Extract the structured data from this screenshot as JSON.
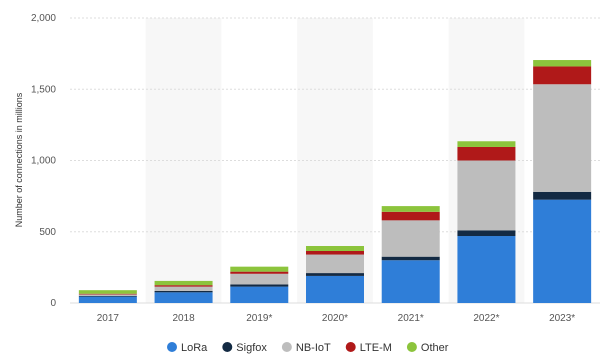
{
  "chart_data": {
    "type": "bar",
    "stacked": true,
    "categories": [
      "2017",
      "2018",
      "2019*",
      "2020*",
      "2021*",
      "2022*",
      "2023*"
    ],
    "series": [
      {
        "name": "LoRa",
        "color": "#2f7ed8",
        "values": [
          45,
          75,
          115,
          190,
          300,
          470,
          725
        ]
      },
      {
        "name": "Sigfox",
        "color": "#132a43",
        "values": [
          5,
          10,
          15,
          20,
          25,
          40,
          55
        ]
      },
      {
        "name": "NB-IoT",
        "color": "#bdbdbd",
        "values": [
          10,
          30,
          75,
          130,
          255,
          490,
          755
        ]
      },
      {
        "name": "LTE-M",
        "color": "#b01919",
        "values": [
          5,
          10,
          15,
          25,
          60,
          95,
          125
        ]
      },
      {
        "name": "Other",
        "color": "#8cc43c",
        "values": [
          25,
          30,
          35,
          35,
          40,
          40,
          45
        ]
      }
    ],
    "ylabel": "Number of connections in millions",
    "xlabel": "",
    "ylim": [
      0,
      2000
    ],
    "yticks": [
      0,
      500,
      1000,
      1500,
      2000
    ],
    "ytick_labels": [
      "0",
      "500",
      "1,000",
      "1,500",
      "2,000"
    ],
    "grid": true,
    "legend_position": "bottom"
  }
}
